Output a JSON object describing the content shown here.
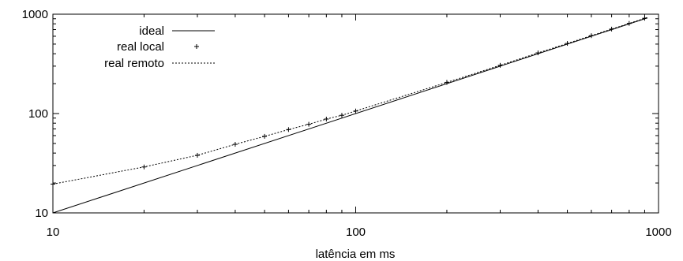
{
  "chart_data": {
    "type": "line",
    "xscale": "log",
    "yscale": "log",
    "xlim": [
      10,
      1000
    ],
    "ylim": [
      10,
      1000
    ],
    "xlabel": "latência em ms",
    "ylabel": "",
    "grid": false,
    "legend_position": "top-left",
    "x_ticks": [
      "10",
      "100",
      "1000"
    ],
    "y_ticks": [
      "10",
      "100",
      "1000"
    ],
    "series": [
      {
        "name": "ideal",
        "style": "solid-line",
        "color": "#000000",
        "x": [
          10,
          920
        ],
        "y": [
          10,
          920
        ]
      },
      {
        "name": "real local",
        "style": "plus-markers",
        "color": "#000000",
        "x": [
          10,
          20,
          30,
          40,
          50,
          60,
          70,
          80,
          90,
          100,
          200,
          300,
          400,
          500,
          600,
          700,
          800,
          900
        ],
        "y": [
          19.5,
          29,
          38,
          49,
          59,
          69,
          78,
          88,
          96,
          106,
          206,
          306,
          408,
          508,
          608,
          708,
          808,
          910
        ]
      },
      {
        "name": "real remoto",
        "style": "dotted-line",
        "color": "#000000",
        "x": [
          10,
          20,
          30,
          40,
          50,
          60,
          70,
          80,
          90,
          100,
          200,
          300,
          400,
          500,
          600,
          700,
          800,
          900,
          920
        ],
        "y": [
          19.5,
          29,
          38,
          49,
          59,
          69,
          78,
          88,
          96,
          106,
          206,
          306,
          408,
          508,
          608,
          708,
          808,
          910,
          930
        ]
      }
    ]
  }
}
